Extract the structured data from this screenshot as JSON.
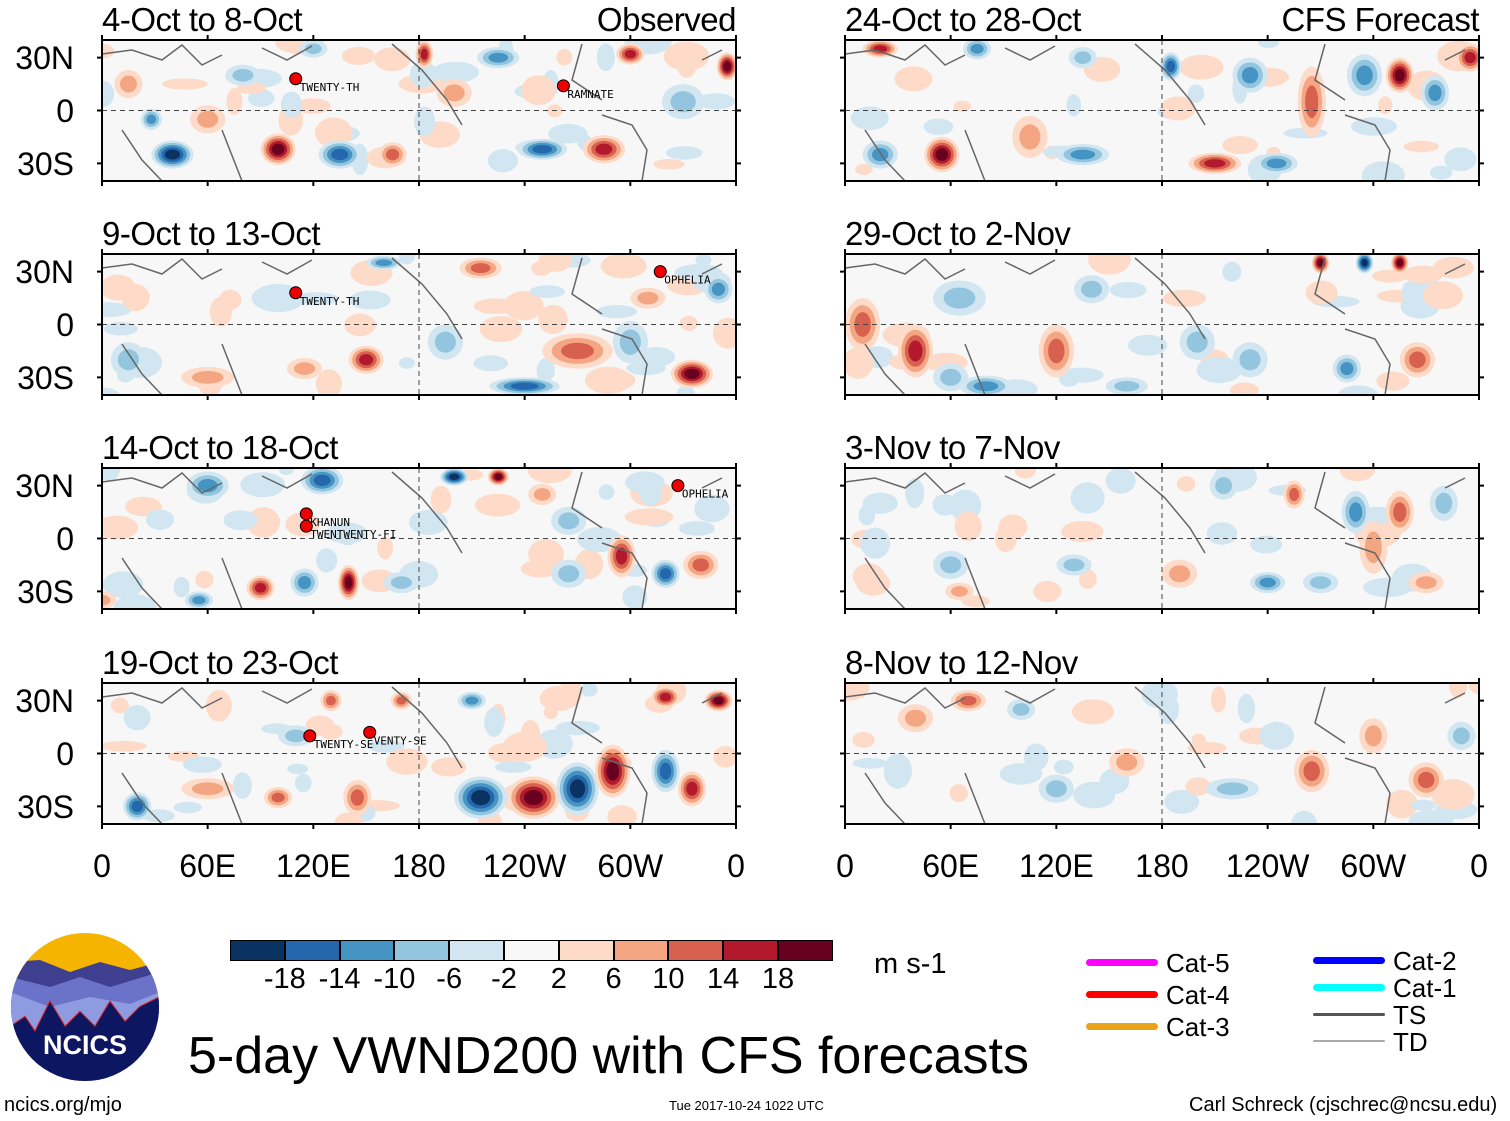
{
  "title": "5-day VWND200 with CFS forecasts",
  "footer": {
    "left": "ncics.org/mjo",
    "center": "Tue 2017-10-24 1022 UTC",
    "right": "Carl Schreck (cjschrec@ncsu.edu)"
  },
  "logo_text": "NCICS",
  "headers": {
    "observed": "Observed",
    "forecast": "CFS Forecast"
  },
  "lat_labels": [
    "30N",
    "0",
    "30S"
  ],
  "lon_labels": [
    "0",
    "60E",
    "120E",
    "180",
    "120W",
    "60W",
    "0"
  ],
  "colorbar": {
    "labels": [
      "-18",
      "-14",
      "-10",
      "-6",
      "-2",
      "2",
      "6",
      "10",
      "14",
      "18"
    ],
    "units": "m s-1",
    "colors": [
      "#0b3362",
      "#2467ac",
      "#4594c4",
      "#93c6de",
      "#d2e6f1",
      "#f8f8f8",
      "#fddbc8",
      "#f4a683",
      "#d7604e",
      "#b3192c",
      "#68001f"
    ]
  },
  "legend": [
    {
      "label": "Cat-5",
      "color": "#ff00ff"
    },
    {
      "label": "Cat-4",
      "color": "#ff0000"
    },
    {
      "label": "Cat-3",
      "color": "#e8a317"
    },
    {
      "label": "Cat-2",
      "color": "#0000ff"
    },
    {
      "label": "Cat-1",
      "color": "#00ffff"
    },
    {
      "label": "TS",
      "color": "#555555"
    },
    {
      "label": "TD",
      "color": "#aaaaaa"
    }
  ],
  "chart_data": {
    "type": "heatmap",
    "variable": "200 hPa meridional wind",
    "units": "m s-1",
    "lat_range": [
      -40,
      40
    ],
    "lon_range": [
      0,
      360
    ],
    "panels": [
      {
        "title": "4-Oct to 8-Oct",
        "kind": "observed",
        "storms": [
          {
            "label": "TWENTY-TH",
            "lon": 110,
            "lat": 18
          },
          {
            "label": "RAMNATE",
            "lon": 262,
            "lat": 14
          }
        ]
      },
      {
        "title": "9-Oct to 13-Oct",
        "kind": "observed",
        "storms": [
          {
            "label": "TWENTY-TH",
            "lon": 110,
            "lat": 18
          },
          {
            "label": "OPHELIA",
            "lon": 317,
            "lat": 30
          }
        ]
      },
      {
        "title": "14-Oct to 18-Oct",
        "kind": "observed",
        "storms": [
          {
            "label": "KHANUN",
            "lon": 116,
            "lat": 14
          },
          {
            "label": "TWENTWENTY-FI",
            "lon": 116,
            "lat": 7
          },
          {
            "label": "OPHELIA",
            "lon": 327,
            "lat": 30
          }
        ]
      },
      {
        "title": "19-Oct to 23-Oct",
        "kind": "observed",
        "storms": [
          {
            "label": "TWENTY-SE",
            "lon": 118,
            "lat": 10
          },
          {
            "label": "VENTY-SE",
            "lon": 152,
            "lat": 12
          }
        ]
      },
      {
        "title": "24-Oct to 28-Oct",
        "kind": "forecast",
        "storms": []
      },
      {
        "title": "29-Oct to 2-Nov",
        "kind": "forecast",
        "storms": []
      },
      {
        "title": "3-Nov to 7-Nov",
        "kind": "forecast",
        "storms": []
      },
      {
        "title": "8-Nov to 12-Nov",
        "kind": "forecast",
        "storms": []
      }
    ]
  }
}
